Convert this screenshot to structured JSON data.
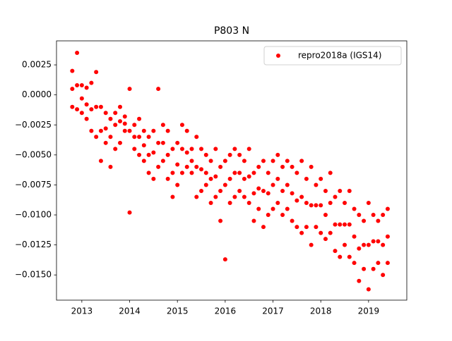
{
  "chart_data": {
    "type": "scatter",
    "title": "P803 N",
    "x": [
      2012.8,
      2012.8,
      2012.8,
      2012.9,
      2012.9,
      2012.9,
      2013.0,
      2013.0,
      2013.0,
      2013.1,
      2013.1,
      2013.1,
      2013.2,
      2013.2,
      2013.2,
      2013.3,
      2013.3,
      2013.3,
      2013.4,
      2013.4,
      2013.4,
      2013.5,
      2013.5,
      2013.5,
      2013.6,
      2013.6,
      2013.6,
      2013.7,
      2013.7,
      2013.7,
      2013.8,
      2013.8,
      2013.8,
      2013.9,
      2013.9,
      2013.9,
      2014.0,
      2014.0,
      2014.0,
      2014.1,
      2014.1,
      2014.1,
      2014.2,
      2014.2,
      2014.2,
      2014.3,
      2014.3,
      2014.3,
      2014.4,
      2014.4,
      2014.4,
      2014.5,
      2014.5,
      2014.5,
      2014.6,
      2014.6,
      2014.6,
      2014.7,
      2014.7,
      2014.7,
      2014.8,
      2014.8,
      2014.8,
      2014.9,
      2014.9,
      2014.9,
      2015.0,
      2015.0,
      2015.0,
      2015.1,
      2015.1,
      2015.1,
      2015.2,
      2015.2,
      2015.2,
      2015.3,
      2015.3,
      2015.3,
      2015.4,
      2015.4,
      2015.4,
      2015.5,
      2015.5,
      2015.5,
      2015.6,
      2015.6,
      2015.6,
      2015.7,
      2015.7,
      2015.7,
      2015.8,
      2015.8,
      2015.8,
      2015.9,
      2015.9,
      2015.9,
      2016.0,
      2016.0,
      2016.0,
      2016.1,
      2016.1,
      2016.1,
      2016.2,
      2016.2,
      2016.2,
      2016.3,
      2016.3,
      2016.3,
      2016.4,
      2016.4,
      2016.4,
      2016.5,
      2016.5,
      2016.5,
      2016.6,
      2016.6,
      2016.6,
      2016.7,
      2016.7,
      2016.7,
      2016.8,
      2016.8,
      2016.8,
      2016.9,
      2016.9,
      2016.9,
      2017.0,
      2017.0,
      2017.0,
      2017.1,
      2017.1,
      2017.1,
      2017.2,
      2017.2,
      2017.2,
      2017.3,
      2017.3,
      2017.3,
      2017.4,
      2017.4,
      2017.4,
      2017.5,
      2017.5,
      2017.5,
      2017.6,
      2017.6,
      2017.6,
      2017.7,
      2017.7,
      2017.7,
      2017.8,
      2017.8,
      2017.8,
      2017.9,
      2017.9,
      2017.9,
      2018.0,
      2018.0,
      2018.0,
      2018.1,
      2018.1,
      2018.1,
      2018.2,
      2018.2,
      2018.2,
      2018.3,
      2018.3,
      2018.3,
      2018.4,
      2018.4,
      2018.4,
      2018.5,
      2018.5,
      2018.5,
      2018.6,
      2018.6,
      2018.6,
      2018.7,
      2018.7,
      2018.7,
      2018.8,
      2018.8,
      2018.8,
      2018.9,
      2018.9,
      2018.9,
      2019.0,
      2019.0,
      2019.0,
      2019.1,
      2019.1,
      2019.1,
      2019.2,
      2019.2,
      2019.2,
      2019.3,
      2019.3,
      2019.3,
      2019.4,
      2019.4,
      2019.4
    ],
    "series": [
      {
        "name": "repro2018a (IGS14)",
        "color": "#ff0000",
        "values": [
          0.002,
          0.0005,
          -0.001,
          0.0035,
          0.0008,
          -0.0012,
          0.0008,
          -0.0003,
          -0.0015,
          0.0006,
          -0.0008,
          -0.002,
          0.001,
          -0.0012,
          -0.003,
          0.0019,
          -0.001,
          -0.0035,
          -0.001,
          -0.003,
          -0.0055,
          -0.0015,
          -0.0028,
          -0.004,
          -0.002,
          -0.0035,
          -0.006,
          -0.0015,
          -0.0025,
          -0.0045,
          -0.001,
          -0.0022,
          -0.004,
          -0.0018,
          -0.0024,
          -0.003,
          0.0005,
          -0.003,
          -0.0098,
          -0.0025,
          -0.0035,
          -0.0045,
          -0.002,
          -0.0035,
          -0.005,
          -0.003,
          -0.0042,
          -0.0055,
          -0.0035,
          -0.005,
          -0.0065,
          -0.003,
          -0.0048,
          -0.007,
          0.0005,
          -0.004,
          -0.006,
          -0.0025,
          -0.004,
          -0.0055,
          -0.003,
          -0.005,
          -0.007,
          -0.0045,
          -0.0065,
          -0.0085,
          -0.004,
          -0.0058,
          -0.0075,
          -0.0025,
          -0.0045,
          -0.0065,
          -0.003,
          -0.0048,
          -0.006,
          -0.0045,
          -0.0055,
          -0.0065,
          -0.0035,
          -0.006,
          -0.0085,
          -0.0045,
          -0.0062,
          -0.008,
          -0.005,
          -0.0065,
          -0.0075,
          -0.0055,
          -0.007,
          -0.009,
          -0.0045,
          -0.0068,
          -0.0085,
          -0.006,
          -0.008,
          -0.0105,
          -0.0055,
          -0.0075,
          -0.0137,
          -0.005,
          -0.007,
          -0.009,
          -0.0045,
          -0.0065,
          -0.0085,
          -0.005,
          -0.0065,
          -0.008,
          -0.0055,
          -0.007,
          -0.0085,
          -0.0045,
          -0.0068,
          -0.009,
          -0.0065,
          -0.0082,
          -0.0105,
          -0.006,
          -0.0078,
          -0.0095,
          -0.0055,
          -0.008,
          -0.011,
          -0.0065,
          -0.0082,
          -0.01,
          -0.0055,
          -0.0075,
          -0.0095,
          -0.005,
          -0.007,
          -0.009,
          -0.006,
          -0.008,
          -0.01,
          -0.0055,
          -0.0075,
          -0.0095,
          -0.006,
          -0.0082,
          -0.0105,
          -0.0065,
          -0.0088,
          -0.011,
          -0.0055,
          -0.0085,
          -0.0115,
          -0.007,
          -0.009,
          -0.011,
          -0.006,
          -0.0092,
          -0.0125,
          -0.0075,
          -0.0092,
          -0.011,
          -0.007,
          -0.0092,
          -0.0115,
          -0.008,
          -0.01,
          -0.012,
          -0.0065,
          -0.009,
          -0.0115,
          -0.0085,
          -0.0108,
          -0.013,
          -0.008,
          -0.0108,
          -0.0135,
          -0.009,
          -0.0108,
          -0.0125,
          -0.008,
          -0.0108,
          -0.0135,
          -0.0095,
          -0.0118,
          -0.014,
          -0.01,
          -0.0128,
          -0.0155,
          -0.0105,
          -0.0125,
          -0.0145,
          -0.009,
          -0.0125,
          -0.0162,
          -0.01,
          -0.0122,
          -0.0145,
          -0.0105,
          -0.0122,
          -0.014,
          -0.01,
          -0.0125,
          -0.015,
          -0.0095,
          -0.0118,
          -0.014
        ]
      }
    ],
    "xlim": [
      2012.47,
      2019.8
    ],
    "xticks": [
      2013,
      2014,
      2015,
      2016,
      2017,
      2018,
      2019
    ],
    "ylim": [
      -0.0171,
      0.0045
    ],
    "yticks": [
      {
        "value": 0.0025,
        "label": "0.0025"
      },
      {
        "value": 0,
        "label": "0.0000"
      },
      {
        "value": -0.0025,
        "label": "−0.0025"
      },
      {
        "value": -0.005,
        "label": "−0.0050"
      },
      {
        "value": -0.0075,
        "label": "−0.0075"
      },
      {
        "value": -0.01,
        "label": "−0.0100"
      },
      {
        "value": -0.0125,
        "label": "−0.0125"
      },
      {
        "value": -0.015,
        "label": "−0.0150"
      }
    ],
    "legend": "upper right"
  }
}
